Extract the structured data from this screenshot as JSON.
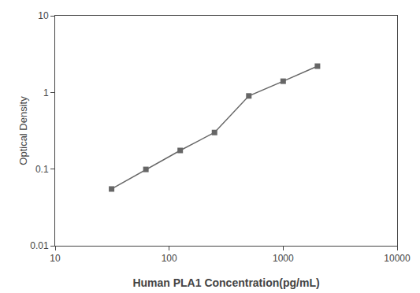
{
  "chart_data": {
    "type": "line",
    "x": [
      31.25,
      62.5,
      125,
      250,
      500,
      1000,
      2000
    ],
    "values": [
      0.055,
      0.099,
      0.175,
      0.3,
      0.9,
      1.4,
      2.2
    ],
    "xlabel": "Human PLA1 Concentration(pg/mL)",
    "ylabel": "Optical Density",
    "xlim": [
      10,
      10000
    ],
    "ylim": [
      0.01,
      10
    ],
    "xticks": [
      10,
      100,
      1000,
      10000
    ],
    "yticks": [
      0.01,
      0.1,
      1,
      10
    ],
    "log": true,
    "grid": false,
    "color": "#666666",
    "marker": "square",
    "line_style": "solid"
  }
}
